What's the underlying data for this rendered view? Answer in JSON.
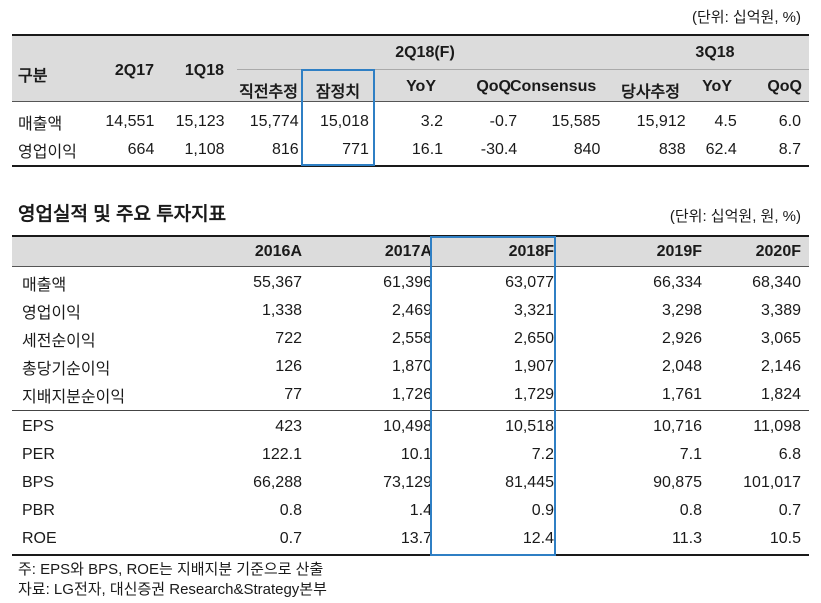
{
  "table1": {
    "unit": "(단위: 십억원, %)",
    "col_label": "구분",
    "period_2q17": "2Q17",
    "period_1q18": "1Q18",
    "group_2q18": "2Q18(F)",
    "group_3q18": "3Q18",
    "sub_2q18": [
      "직전추정",
      "잠정치",
      "YoY",
      "QoQ",
      "Consensus"
    ],
    "sub_3q18": [
      "당사추정",
      "YoY",
      "QoQ"
    ],
    "rows": [
      {
        "label": "매출액",
        "v": [
          "14,551",
          "15,123",
          "15,774",
          "15,018",
          "3.2",
          "-0.7",
          "15,585",
          "15,912",
          "4.5",
          "6.0"
        ]
      },
      {
        "label": "영업이익",
        "v": [
          "664",
          "1,108",
          "816",
          "771",
          "16.1",
          "-30.4",
          "840",
          "838",
          "62.4",
          "8.7"
        ]
      }
    ]
  },
  "table2": {
    "title": "영업실적 및 주요 투자지표",
    "unit": "(단위: 십억원, 원, %)",
    "headers": [
      "2016A",
      "2017A",
      "2018F",
      "2019F",
      "2020F"
    ],
    "rows_top": [
      {
        "label": "매출액",
        "v": [
          "55,367",
          "61,396",
          "63,077",
          "66,334",
          "68,340"
        ]
      },
      {
        "label": "영업이익",
        "v": [
          "1,338",
          "2,469",
          "3,321",
          "3,298",
          "3,389"
        ]
      },
      {
        "label": "세전순이익",
        "v": [
          "722",
          "2,558",
          "2,650",
          "2,926",
          "3,065"
        ]
      },
      {
        "label": "총당기순이익",
        "v": [
          "126",
          "1,870",
          "1,907",
          "2,048",
          "2,146"
        ]
      },
      {
        "label": "지배지분순이익",
        "v": [
          "77",
          "1,726",
          "1,729",
          "1,761",
          "1,824"
        ]
      }
    ],
    "rows_bottom": [
      {
        "label": "EPS",
        "v": [
          "423",
          "10,498",
          "10,518",
          "10,716",
          "11,098"
        ]
      },
      {
        "label": "PER",
        "v": [
          "122.1",
          "10.1",
          "7.2",
          "7.1",
          "6.8"
        ]
      },
      {
        "label": "BPS",
        "v": [
          "66,288",
          "73,129",
          "81,445",
          "90,875",
          "101,017"
        ]
      },
      {
        "label": "PBR",
        "v": [
          "0.8",
          "1.4",
          "0.9",
          "0.8",
          "0.7"
        ]
      },
      {
        "label": "ROE",
        "v": [
          "0.7",
          "13.7",
          "12.4",
          "11.3",
          "10.5"
        ]
      }
    ]
  },
  "notes": {
    "note": "주: EPS와 BPS, ROE는 지배지분 기준으로 산출",
    "source": "자료: LG전자, 대신증권 Research&Strategy본부"
  },
  "colors": {
    "highlight": "#2f7fc4",
    "header_bg": "#dcdcdc"
  }
}
